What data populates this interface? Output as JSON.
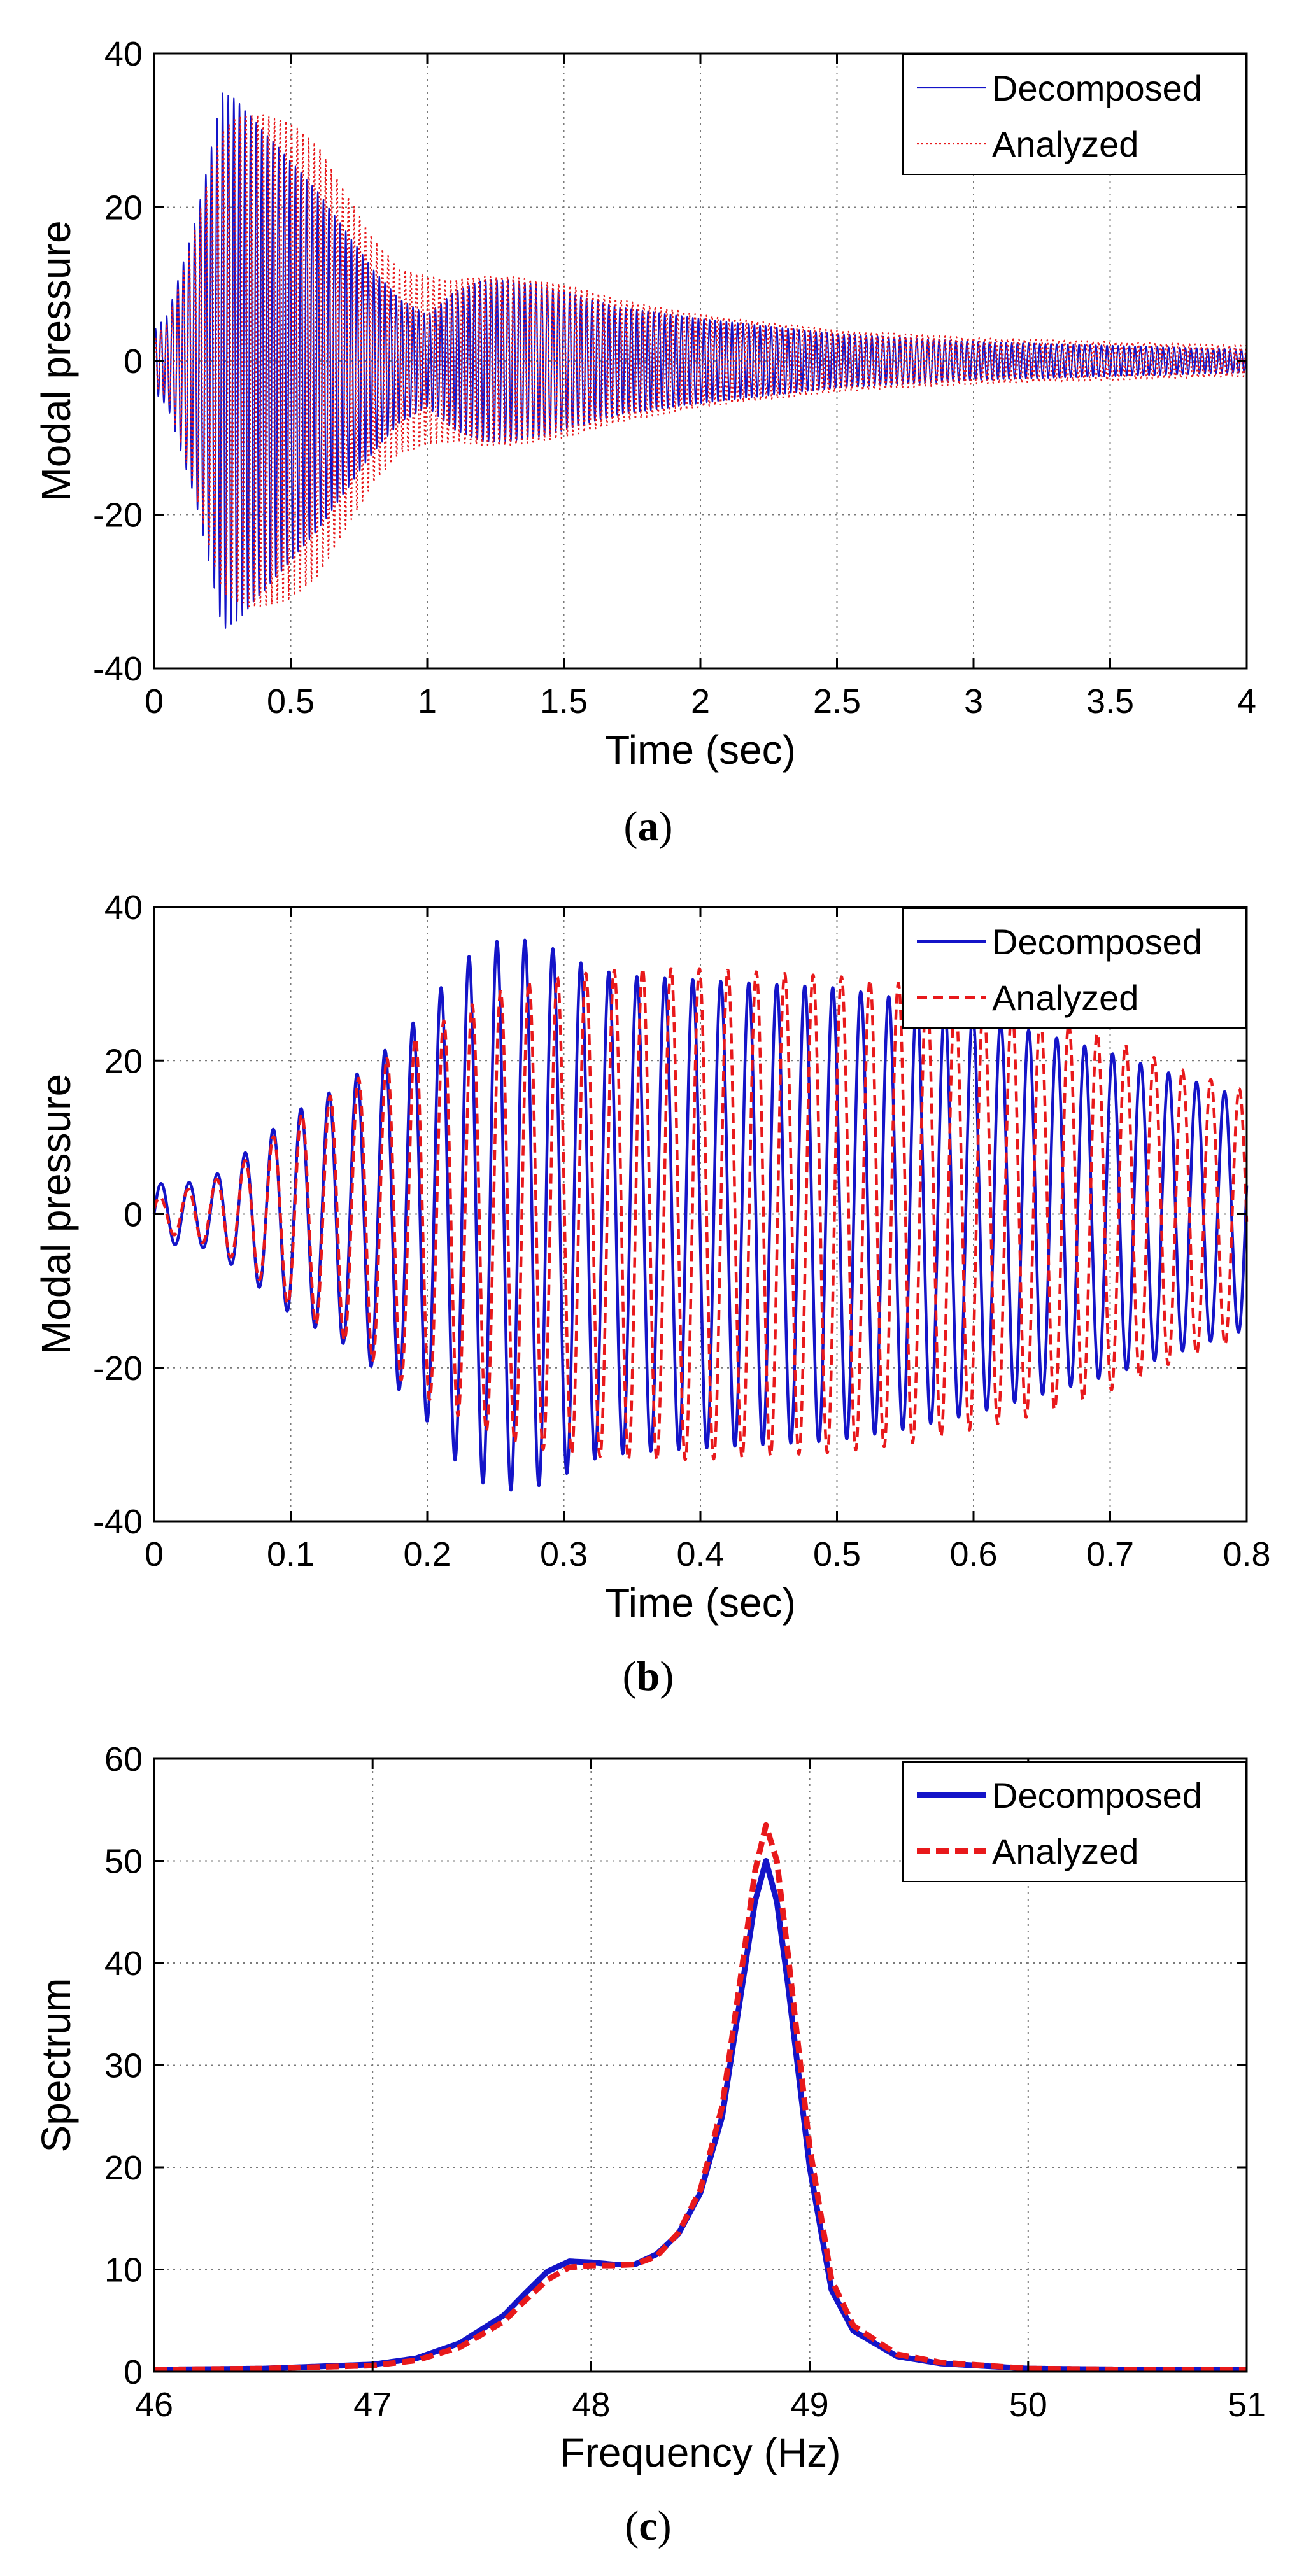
{
  "colors": {
    "decomposed": "#1414c8",
    "analyzed": "#e8191b",
    "grid": "#7a7a7a",
    "axis": "#000000"
  },
  "chart_data": [
    {
      "type": "line",
      "panel": "a",
      "caption_open": "(",
      "caption_letter": "a",
      "caption_close": ")",
      "title": "",
      "xlabel": "Time (sec)",
      "ylabel": "Modal pressure",
      "xlim": [
        0,
        4
      ],
      "ylim": [
        -40,
        40
      ],
      "xticks": [
        0,
        0.5,
        1,
        1.5,
        2,
        2.5,
        3,
        3.5,
        4
      ],
      "yticks": [
        -40,
        -20,
        0,
        20,
        40
      ],
      "grid": true,
      "legend_position": "top-right",
      "legend": [
        "Decomposed",
        "Analyzed"
      ],
      "frequency_hz": 48.8,
      "series": [
        {
          "name": "Decomposed",
          "style": "solid-thin",
          "envelope_t": [
            0,
            0.05,
            0.1,
            0.15,
            0.2,
            0.25,
            0.3,
            0.35,
            0.4,
            0.5,
            0.6,
            0.7,
            0.8,
            0.9,
            1.0,
            1.1,
            1.2,
            1.3,
            1.4,
            1.5,
            1.7,
            2.0,
            2.5,
            3.0,
            3.5,
            4.0
          ],
          "envelope_a": [
            4,
            6,
            12,
            18,
            26,
            35,
            34,
            32,
            30,
            26,
            22,
            17,
            12,
            8,
            6,
            9,
            10.5,
            10.5,
            10,
            9,
            7,
            5.5,
            3.5,
            2.5,
            2,
            1.5
          ]
        },
        {
          "name": "Analyzed",
          "style": "dotted",
          "envelope_t": [
            0,
            0.05,
            0.1,
            0.15,
            0.2,
            0.25,
            0.3,
            0.35,
            0.4,
            0.5,
            0.6,
            0.7,
            0.8,
            0.9,
            1.0,
            1.1,
            1.2,
            1.3,
            1.4,
            1.5,
            1.7,
            2.0,
            2.5,
            3.0,
            3.5,
            4.0
          ],
          "envelope_a": [
            3,
            5,
            11,
            17,
            24,
            30,
            31.5,
            32,
            32,
            31,
            28,
            22,
            16,
            12,
            11,
            10.5,
            11,
            11,
            10.5,
            10,
            8,
            6,
            4,
            3,
            2.5,
            2
          ]
        }
      ]
    },
    {
      "type": "line",
      "panel": "b",
      "caption_open": "(",
      "caption_letter": "b",
      "caption_close": ")",
      "title": "",
      "xlabel": "Time (sec)",
      "ylabel": "Modal pressure",
      "xlim": [
        0,
        0.8
      ],
      "ylim": [
        -40,
        40
      ],
      "xticks": [
        0,
        0.1,
        0.2,
        0.3,
        0.4,
        0.5,
        0.6,
        0.7,
        0.8
      ],
      "yticks": [
        -40,
        -20,
        0,
        20,
        40
      ],
      "grid": true,
      "legend_position": "top-right",
      "legend": [
        "Decomposed",
        "Analyzed"
      ],
      "frequency_hz": 48.8,
      "series": [
        {
          "name": "Decomposed",
          "style": "solid",
          "envelope_t": [
            0,
            0.02,
            0.04,
            0.06,
            0.08,
            0.1,
            0.12,
            0.14,
            0.16,
            0.18,
            0.2,
            0.22,
            0.24,
            0.26,
            0.28,
            0.3,
            0.32,
            0.35,
            0.4,
            0.45,
            0.5,
            0.55,
            0.6,
            0.65,
            0.7,
            0.75,
            0.8
          ],
          "envelope_a": [
            4,
            4,
            4.5,
            7,
            10,
            13,
            15,
            17,
            20,
            23,
            27,
            32,
            35,
            36,
            35.5,
            34,
            32,
            31,
            30.5,
            30,
            29.5,
            28,
            26,
            23.5,
            21,
            18,
            15
          ]
        },
        {
          "name": "Analyzed",
          "style": "dashed",
          "envelope_t": [
            0,
            0.02,
            0.04,
            0.06,
            0.08,
            0.1,
            0.12,
            0.14,
            0.16,
            0.18,
            0.2,
            0.22,
            0.24,
            0.26,
            0.28,
            0.3,
            0.32,
            0.35,
            0.4,
            0.45,
            0.5,
            0.55,
            0.6,
            0.65,
            0.7,
            0.75,
            0.8
          ],
          "envelope_a": [
            2,
            3,
            4,
            6,
            9,
            12,
            14.5,
            16.5,
            19,
            21.5,
            24,
            26,
            28,
            29.5,
            30.5,
            31,
            31.5,
            32,
            32,
            31.5,
            31,
            30,
            28,
            26,
            23,
            19,
            16
          ]
        }
      ]
    },
    {
      "type": "line",
      "panel": "c",
      "caption_open": "(",
      "caption_letter": "c",
      "caption_close": ")",
      "title": "",
      "xlabel": "Frequency (Hz)",
      "ylabel": "Spectrum",
      "xlim": [
        46,
        51
      ],
      "ylim": [
        0,
        60
      ],
      "xticks": [
        46,
        47,
        48,
        49,
        50,
        51
      ],
      "yticks": [
        0,
        10,
        20,
        30,
        40,
        50,
        60
      ],
      "grid": true,
      "legend_position": "top-right",
      "legend": [
        "Decomposed",
        "Analyzed"
      ],
      "series": [
        {
          "name": "Decomposed",
          "style": "solid-thick",
          "x": [
            46,
            46.5,
            47,
            47.2,
            47.4,
            47.6,
            47.7,
            47.8,
            47.9,
            48.0,
            48.1,
            48.2,
            48.3,
            48.4,
            48.5,
            48.6,
            48.7,
            48.75,
            48.8,
            48.85,
            48.9,
            49.0,
            49.1,
            49.2,
            49.4,
            49.6,
            50,
            50.5,
            51
          ],
          "y": [
            0.2,
            0.3,
            0.7,
            1.3,
            2.8,
            5.5,
            7.7,
            9.8,
            10.8,
            10.7,
            10.5,
            10.5,
            11.5,
            13.5,
            17.5,
            25,
            39,
            46,
            50,
            46,
            38,
            20,
            8,
            4,
            1.5,
            0.8,
            0.3,
            0.2,
            0.2
          ]
        },
        {
          "name": "Analyzed",
          "style": "dashed-thick",
          "x": [
            46,
            46.5,
            47,
            47.2,
            47.4,
            47.6,
            47.7,
            47.8,
            47.9,
            48.0,
            48.1,
            48.2,
            48.3,
            48.4,
            48.5,
            48.6,
            48.7,
            48.75,
            48.8,
            48.85,
            48.9,
            49.0,
            49.1,
            49.2,
            49.4,
            49.6,
            50,
            50.5,
            51
          ],
          "y": [
            0.2,
            0.3,
            0.6,
            1.1,
            2.4,
            4.9,
            7.0,
            9.0,
            10.2,
            10.4,
            10.4,
            10.5,
            11.3,
            13.6,
            17.8,
            26,
            41,
            49,
            53.5,
            50,
            41,
            22,
            9,
            4.5,
            1.7,
            0.9,
            0.3,
            0.2,
            0.2
          ]
        }
      ]
    }
  ]
}
